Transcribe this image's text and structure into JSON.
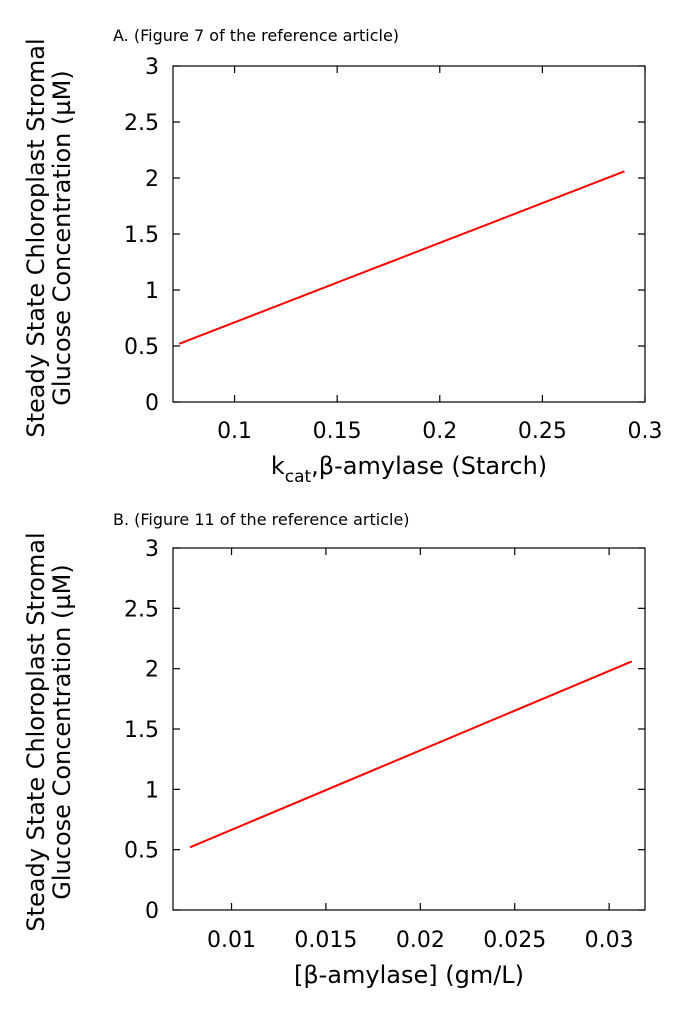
{
  "colors": {
    "series": "#ff0000"
  },
  "chart_data": [
    {
      "type": "line",
      "caption": "A. (Figure 7 of the reference article)",
      "ylabel_lines": [
        "Steady State Chloroplast Stromal",
        "Glucose Concentration (µM)"
      ],
      "xlabel_main": "k",
      "xlabel_sub": "cat",
      "xlabel_rest": ",β-amylase (Starch)",
      "xlim": [
        0.07,
        0.3
      ],
      "ylim": [
        0,
        3
      ],
      "xticks": [
        0.1,
        0.15,
        0.2,
        0.25,
        0.3
      ],
      "xtick_labels": [
        "0.1",
        "0.15",
        "0.2",
        "0.25",
        "0.3"
      ],
      "yticks": [
        0,
        0.5,
        1,
        1.5,
        2,
        2.5,
        3
      ],
      "ytick_labels": [
        "0",
        "0.5",
        "1",
        "1.5",
        "2",
        "2.5",
        "3"
      ],
      "grid": false,
      "series": [
        {
          "x": [
            0.073,
            0.29
          ],
          "y": [
            0.52,
            2.06
          ]
        }
      ]
    },
    {
      "type": "line",
      "caption": "B. (Figure 11 of the reference article)",
      "ylabel_lines": [
        "Steady State Chloroplast Stromal",
        "Glucose Concentration (µM)"
      ],
      "xlabel_main": "[β-amylase] (gm/L)",
      "xlabel_sub": "",
      "xlabel_rest": "",
      "xlim": [
        0.0069,
        0.0319
      ],
      "ylim": [
        0,
        3
      ],
      "xticks": [
        0.01,
        0.015,
        0.02,
        0.025,
        0.03
      ],
      "xtick_labels": [
        "0.01",
        "0.015",
        "0.02",
        "0.025",
        "0.03"
      ],
      "yticks": [
        0,
        0.5,
        1,
        1.5,
        2,
        2.5,
        3
      ],
      "ytick_labels": [
        "0",
        "0.5",
        "1",
        "1.5",
        "2",
        "2.5",
        "3"
      ],
      "grid": false,
      "series": [
        {
          "x": [
            0.0078,
            0.0312
          ],
          "y": [
            0.52,
            2.06
          ]
        }
      ]
    }
  ]
}
